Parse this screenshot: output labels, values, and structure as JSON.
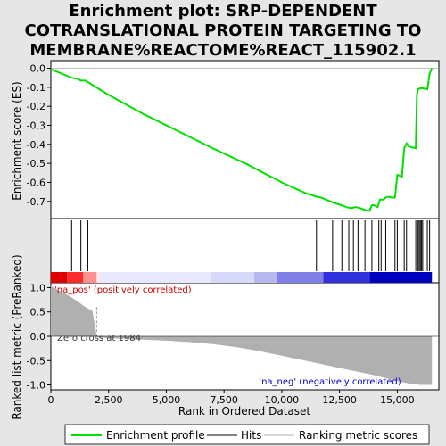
{
  "title_lines": [
    "Enrichment plot: SRP-DEPENDENT",
    "COTRANSLATIONAL PROTEIN TARGETING TO",
    "MEMBRANE%REACTOME%REACT_115902.1"
  ],
  "colors": {
    "es_line": "#00e000",
    "hits": "#000000",
    "metric_fill": "#b0b0b0",
    "pos_label": "#cc0000",
    "neg_label": "#0000cc"
  },
  "chart_data": [
    {
      "type": "line",
      "name": "enrichment-profile",
      "ylabel": "Enrichment score (ES)",
      "xlim": [
        0,
        16800
      ],
      "ylim": [
        -0.79,
        0.04
      ],
      "yticks": [
        0.0,
        -0.1,
        -0.2,
        -0.3,
        -0.4,
        -0.5,
        -0.6,
        -0.7
      ],
      "ytick_labels": [
        "0.0",
        "-0.1",
        "-0.2",
        "-0.3",
        "-0.4",
        "-0.5",
        "-0.6",
        "-0.7"
      ],
      "grid": false,
      "x": [
        0,
        200,
        600,
        900,
        1150,
        1300,
        1500,
        1700,
        2500,
        4000,
        5500,
        7000,
        8500,
        10000,
        11000,
        11500,
        11700,
        12200,
        12600,
        12800,
        13000,
        13200,
        13400,
        13600,
        13800,
        13900,
        14000,
        14150,
        14250,
        14400,
        14500,
        14600,
        14800,
        14900,
        15000,
        15200,
        15300,
        15400,
        15500,
        15600,
        15800,
        15850,
        15900,
        16000,
        16100,
        16300,
        16400,
        16500
      ],
      "y": [
        -0.005,
        -0.015,
        -0.035,
        -0.05,
        -0.055,
        -0.065,
        -0.065,
        -0.08,
        -0.14,
        -0.24,
        -0.33,
        -0.42,
        -0.505,
        -0.6,
        -0.655,
        -0.675,
        -0.68,
        -0.705,
        -0.72,
        -0.73,
        -0.735,
        -0.73,
        -0.735,
        -0.745,
        -0.75,
        -0.72,
        -0.72,
        -0.73,
        -0.69,
        -0.69,
        -0.68,
        -0.675,
        -0.68,
        -0.68,
        -0.56,
        -0.57,
        -0.42,
        -0.395,
        -0.41,
        -0.415,
        -0.42,
        -0.14,
        -0.11,
        -0.105,
        -0.105,
        -0.11,
        -0.03,
        0.0
      ]
    },
    {
      "type": "scatter",
      "name": "hits",
      "xlim": [
        0,
        16800
      ],
      "x": [
        900,
        1300,
        1600,
        11500,
        12200,
        12600,
        12900,
        13100,
        13300,
        13600,
        13900,
        14200,
        14300,
        14500,
        14900,
        15000,
        15300,
        15400,
        15800,
        15900,
        15950,
        16000,
        16050,
        16100,
        16300,
        16400
      ]
    },
    {
      "type": "area",
      "name": "ranking-metric",
      "ylabel": "Ranked list metric (PreRanked)",
      "xlabel": "Rank in Ordered Dataset",
      "xlim": [
        0,
        16800
      ],
      "ylim": [
        -1.1,
        1.1
      ],
      "xticks": [
        0,
        2500,
        5000,
        7500,
        10000,
        12500,
        15000
      ],
      "xtick_labels": [
        "0",
        "2,500",
        "5,000",
        "7,500",
        "10,000",
        "12,500",
        "15,000"
      ],
      "yticks": [
        1.0,
        0.5,
        0.0,
        -0.5,
        -1.0
      ],
      "ytick_labels": [
        "1.0",
        "0.5",
        "0.0",
        "-0.5",
        "-1.0"
      ],
      "x": [
        0,
        100,
        300,
        600,
        900,
        1200,
        1500,
        1800,
        1984,
        2000,
        2500,
        3500,
        5000,
        6000,
        7000,
        7500,
        8000,
        8500,
        9000,
        9500,
        10000,
        10500,
        11000,
        11500,
        12000,
        12500,
        13000,
        13500,
        14000,
        14500,
        15000,
        15500,
        16000,
        16300,
        16500
      ],
      "y": [
        1.05,
        1.0,
        0.95,
        0.88,
        0.8,
        0.7,
        0.6,
        0.52,
        0.0,
        -0.02,
        -0.04,
        -0.06,
        -0.09,
        -0.12,
        -0.16,
        -0.19,
        -0.22,
        -0.26,
        -0.3,
        -0.35,
        -0.4,
        -0.45,
        -0.5,
        -0.55,
        -0.6,
        -0.65,
        -0.7,
        -0.75,
        -0.8,
        -0.86,
        -0.92,
        -0.97,
        -1.0,
        -1.0,
        -1.0
      ],
      "labels": {
        "pos": "'na_pos' (positively correlated)",
        "neg": "'na_neg' (negatively correlated)",
        "zero_cross": "Zero cross at 1984"
      }
    }
  ],
  "legend": {
    "items": [
      {
        "label": "Enrichment profile",
        "style": "green-line"
      },
      {
        "label": "Hits",
        "style": "black-line"
      },
      {
        "label": "Ranking metric scores",
        "style": "gray-line"
      }
    ]
  }
}
